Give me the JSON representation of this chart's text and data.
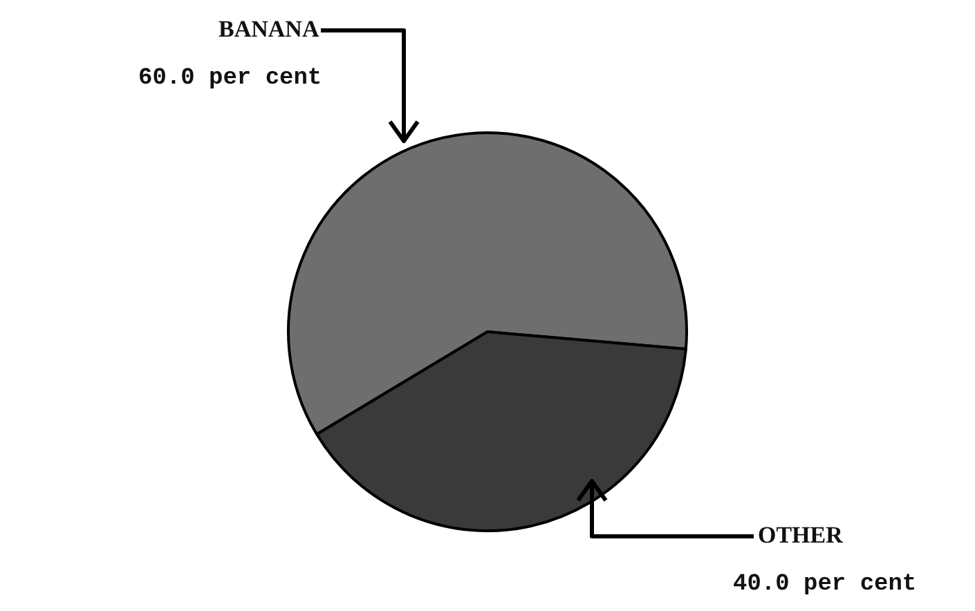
{
  "chart_data": {
    "type": "pie",
    "categories": [
      "BANANA",
      "OTHER"
    ],
    "values": [
      60.0,
      40.0
    ],
    "colors": [
      "#6e6e6e",
      "#3a3a3a"
    ],
    "value_labels": [
      "60.0 per cent",
      "40.0 per cent"
    ],
    "legend": false
  }
}
